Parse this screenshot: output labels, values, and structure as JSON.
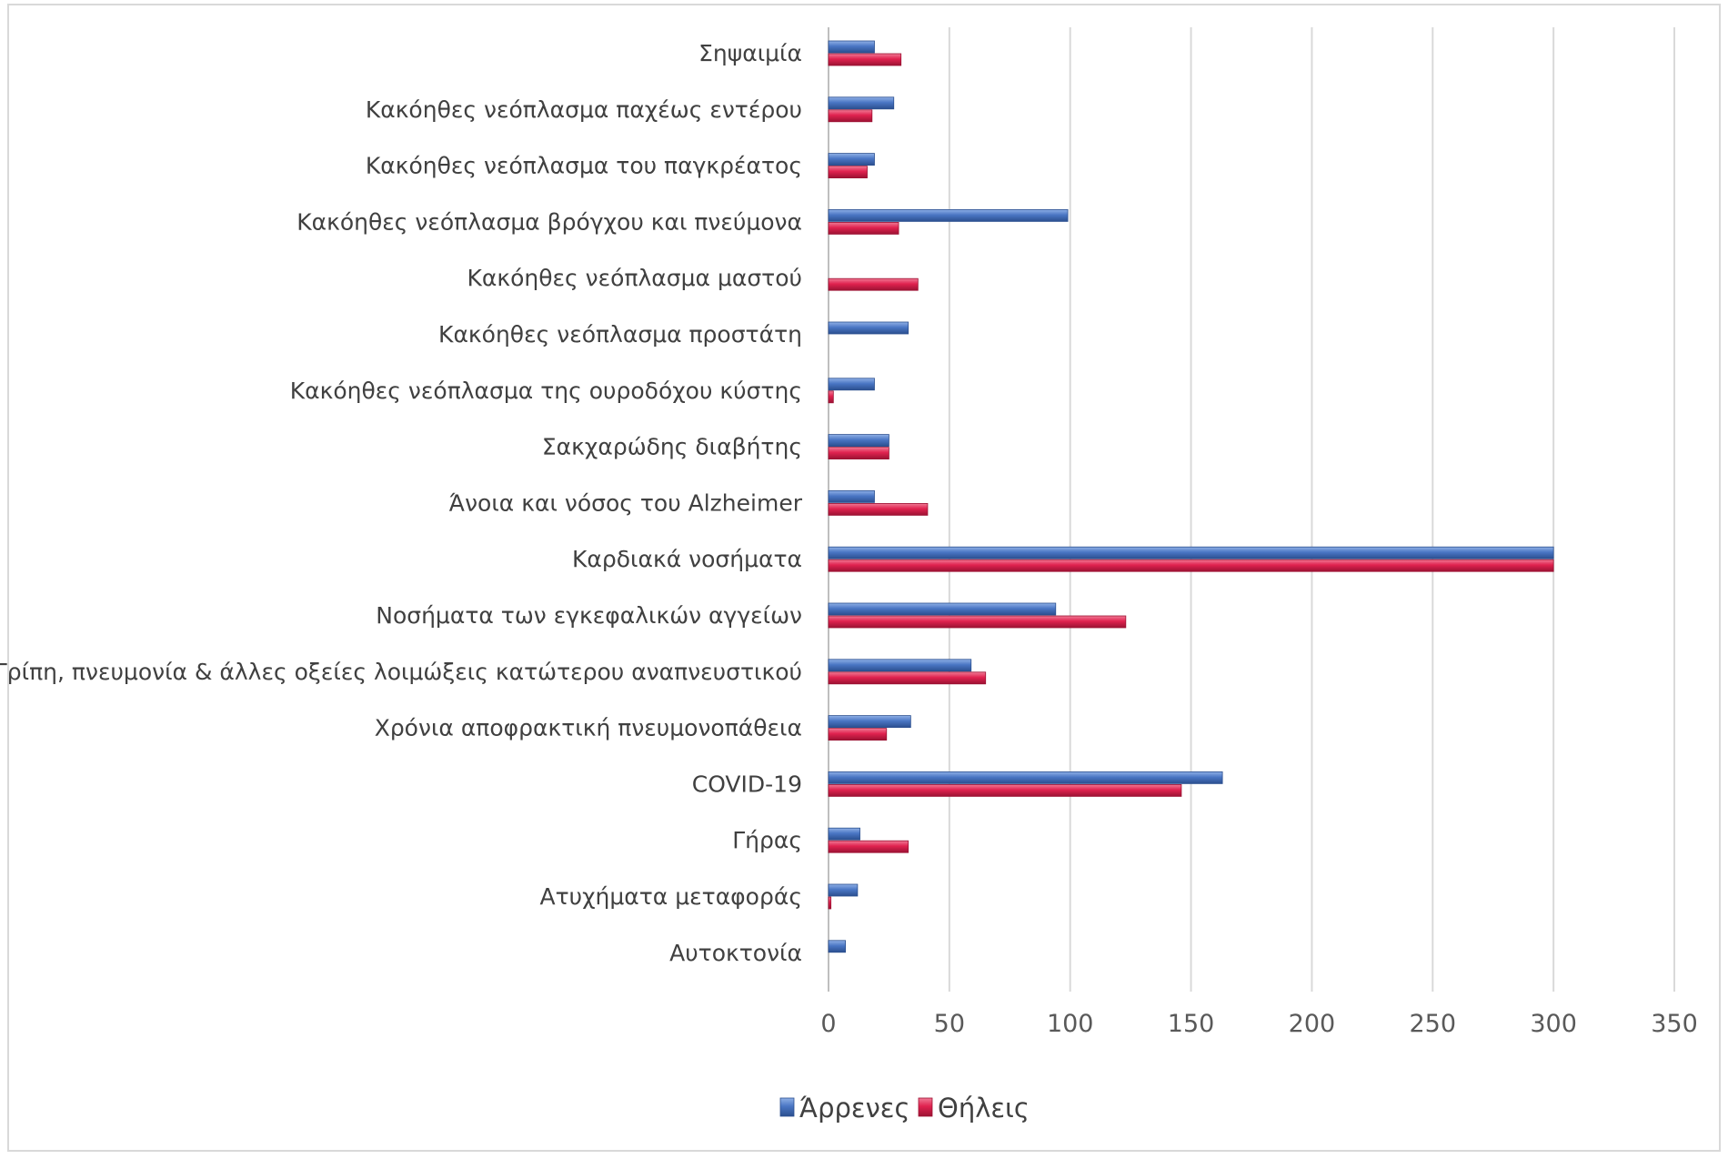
{
  "chart_data": {
    "type": "bar",
    "orientation": "horizontal",
    "categories": [
      "Σηψαιμία",
      "Κακόηθες νεόπλασμα παχέως εντέρου",
      "Κακόηθες νεόπλασμα του παγκρέατος",
      "Κακόηθες νεόπλασμα βρόγχου και πνεύμονα",
      "Κακόηθες νεόπλασμα μαστού",
      "Κακόηθες νεόπλασμα προστάτη",
      "Κακόηθες νεόπλασμα της ουροδόχου κύστης",
      "Σακχαρώδης διαβήτης",
      "Άνοια και νόσος του Alzheimer",
      "Καρδιακά νοσήματα",
      "Νοσήματα των εγκεφαλικών αγγείων",
      "Γρίπη, πνευμονία & άλλες οξείες λοιμώξεις  κατώτερου αναπνευστικού",
      "Χρόνια αποφρακτική πνευμονοπάθεια",
      "COVID-19",
      "Γήρας",
      "Ατυχήματα μεταφοράς",
      "Αυτοκτονία"
    ],
    "series": [
      {
        "name": "Άρρενες",
        "color": "#4472c4",
        "values": [
          19,
          27,
          19,
          99,
          0,
          33,
          19,
          25,
          19,
          300,
          94,
          59,
          34,
          163,
          13,
          12,
          7
        ]
      },
      {
        "name": "Θήλεις",
        "color": "#e0224f",
        "values": [
          30,
          18,
          16,
          29,
          37,
          0,
          2,
          25,
          41,
          300,
          123,
          65,
          24,
          146,
          33,
          1,
          0
        ]
      }
    ],
    "xlim": [
      0,
      350
    ],
    "xticks": [
      0,
      50,
      100,
      150,
      200,
      250,
      300,
      350
    ],
    "grid": true,
    "legend_position": "bottom",
    "title": "",
    "xlabel": "",
    "ylabel": ""
  }
}
